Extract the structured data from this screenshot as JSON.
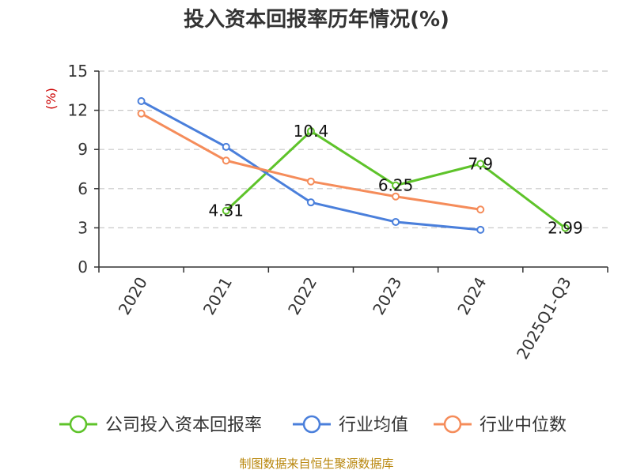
{
  "page": {
    "title": "投入资本回报率历年情况(%)",
    "source": "制图数据来自恒生聚源数据库"
  },
  "chart_data": {
    "type": "line",
    "title": "投入资本回报率历年情况(%)",
    "ylabel": "(%)",
    "xlabel": "",
    "categories": [
      "2020",
      "2021",
      "2022",
      "2023",
      "2024",
      "2025Q1-Q3"
    ],
    "ylim": [
      0,
      15
    ],
    "yticks": [
      0,
      3,
      6,
      9,
      12,
      15
    ],
    "grid": "horizontal dashed",
    "legend_position": "bottom",
    "series": [
      {
        "name": "公司投入资本回报率",
        "color": "#5ec32a",
        "values": [
          null,
          4.31,
          10.4,
          6.25,
          7.9,
          2.99
        ],
        "labels": [
          "",
          "4.31",
          "10.4",
          "6.25",
          "7.9",
          "2.99"
        ]
      },
      {
        "name": "行业均值",
        "color": "#4a7fdb",
        "values": [
          12.7,
          9.2,
          4.95,
          3.45,
          2.85,
          null
        ]
      },
      {
        "name": "行业中位数",
        "color": "#f58c5a",
        "values": [
          11.75,
          8.15,
          6.55,
          5.4,
          4.4,
          null
        ]
      }
    ]
  }
}
